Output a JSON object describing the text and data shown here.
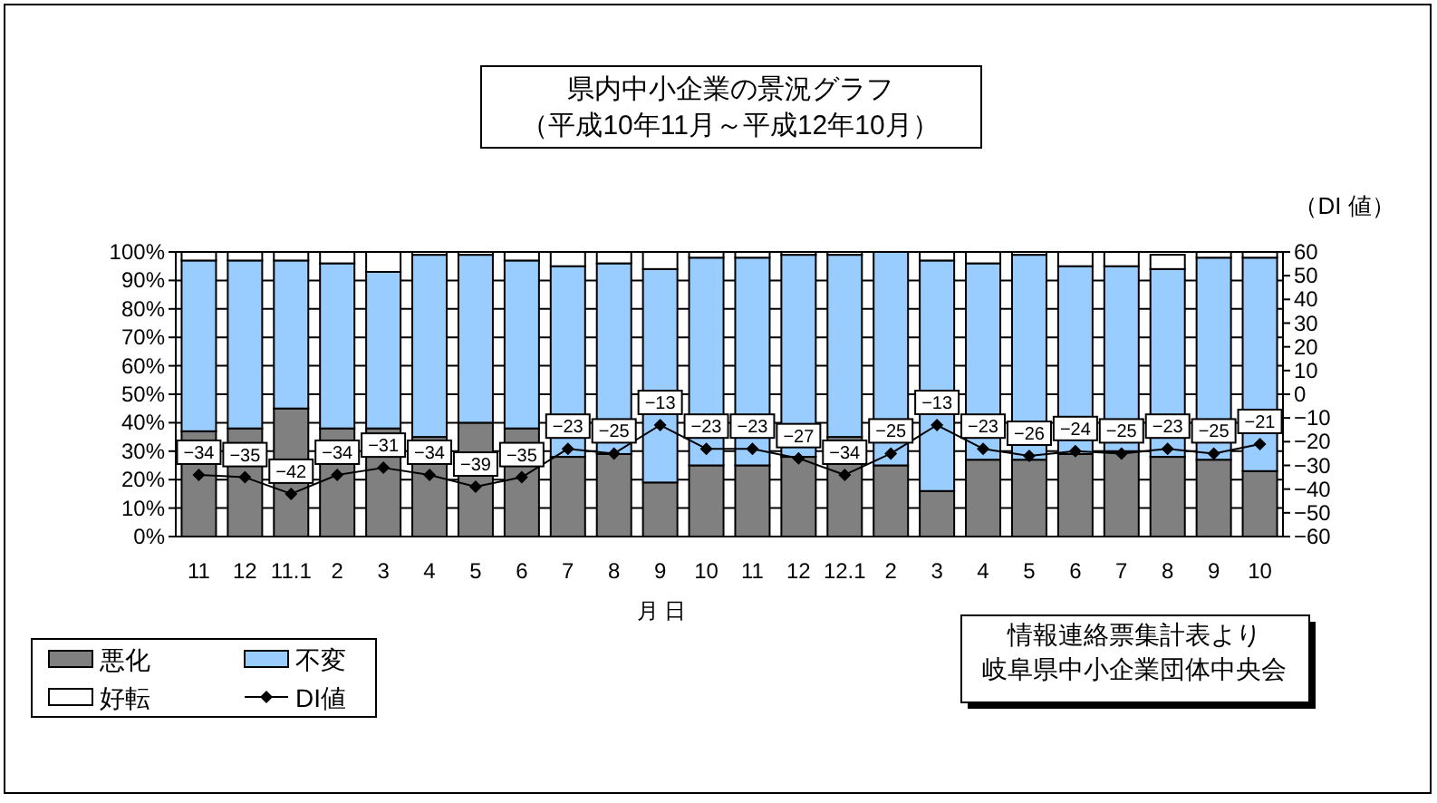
{
  "chart_data": {
    "type": "bar",
    "stacked": true,
    "title": "県内中小企業の景況グラフ",
    "subtitle": "（平成10年11月～平成12年10月）",
    "xlabel": "月 日",
    "y2label": "（DI 値）",
    "categories": [
      "11",
      "12",
      "11.1",
      "2",
      "3",
      "4",
      "5",
      "6",
      "7",
      "8",
      "9",
      "10",
      "11",
      "12",
      "12.1",
      "2",
      "3",
      "4",
      "5",
      "6",
      "7",
      "8",
      "9",
      "10"
    ],
    "series": [
      {
        "name": "悪化",
        "color": "#808080",
        "values": [
          37,
          38,
          45,
          38,
          38,
          35,
          40,
          38,
          28,
          29,
          19,
          25,
          25,
          28,
          35,
          25,
          16,
          27,
          27,
          29,
          30,
          28,
          27,
          23
        ]
      },
      {
        "name": "不変",
        "color": "#99ccff",
        "values": [
          60,
          59,
          52,
          58,
          55,
          64,
          59,
          59,
          67,
          67,
          75,
          73,
          73,
          71,
          64,
          75,
          81,
          69,
          72,
          66,
          65,
          66,
          71,
          75
        ]
      },
      {
        "name": "好転",
        "color": "#ffffff",
        "values": [
          3,
          3,
          3,
          4,
          7,
          1,
          1,
          3,
          5,
          4,
          6,
          2,
          2,
          1,
          1,
          0,
          3,
          4,
          1,
          5,
          5,
          5,
          2,
          2
        ]
      },
      {
        "name": "DI値",
        "type": "line",
        "axis": "y2",
        "color": "#000000",
        "marker": "diamond",
        "data_labels": true,
        "values": [
          -34,
          -35,
          -42,
          -34,
          -31,
          -34,
          -39,
          -35,
          -23,
          -25,
          -13,
          -23,
          -23,
          -27,
          -34,
          -25,
          -13,
          -23,
          -26,
          -24,
          -25,
          -23,
          -25,
          -21
        ]
      }
    ],
    "ylim": [
      0,
      100
    ],
    "yticks": [
      {
        "value": 0,
        "label": "0%"
      },
      {
        "value": 10,
        "label": "10%"
      },
      {
        "value": 20,
        "label": "20%"
      },
      {
        "value": 30,
        "label": "30%"
      },
      {
        "value": 40,
        "label": "40%"
      },
      {
        "value": 50,
        "label": "50%"
      },
      {
        "value": 60,
        "label": "60%"
      },
      {
        "value": 70,
        "label": "70%"
      },
      {
        "value": 80,
        "label": "80%"
      },
      {
        "value": 90,
        "label": "90%"
      },
      {
        "value": 100,
        "label": "100%"
      }
    ],
    "y2lim": [
      -60,
      60
    ],
    "y2ticks": [
      -60,
      -50,
      -40,
      -30,
      -20,
      -10,
      0,
      10,
      20,
      30,
      40,
      50,
      60
    ],
    "grid": "y",
    "legend": "bottom left",
    "annotations": [
      "情報連絡票集計表より",
      "岐阜県中小企業団体中央会"
    ]
  }
}
